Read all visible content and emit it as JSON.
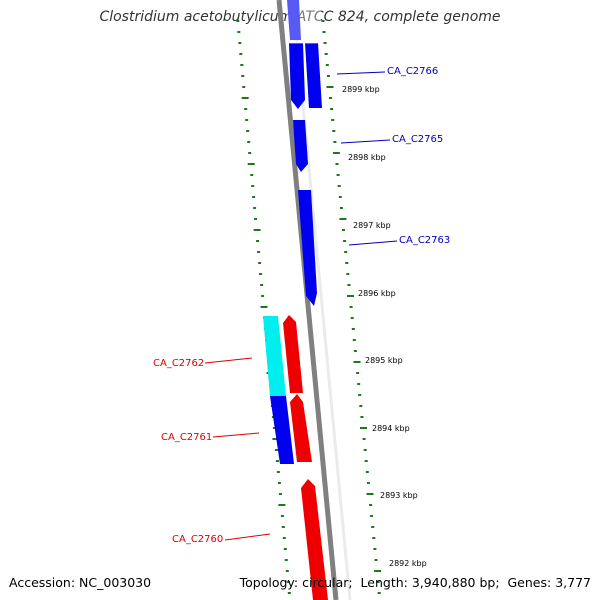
{
  "title": "Clostridium acetobutylicum ATCC 824, complete genome",
  "footer": {
    "accession_label": "Accession:",
    "accession": "NC_003030",
    "topology_label": "Topology:",
    "topology": "circular",
    "length_label": "Length:",
    "length": "3,940,880 bp",
    "genes_label": "Genes:",
    "genes": "3,777"
  },
  "colors": {
    "forward_gene": "#0000ee",
    "reverse_gene": "#ee0000",
    "cds_highlight": "#00eeee",
    "backbone": "#808080",
    "gc_skew_dots": "#1a7a1a",
    "label_forward": "#0000bb",
    "label_reverse": "#dd0000"
  },
  "ticks": [
    "2899 kbp",
    "2898 kbp",
    "2897 kbp",
    "2896 kbp",
    "2895 kbp",
    "2894 kbp",
    "2893 kbp",
    "2892 kbp"
  ],
  "genes": [
    {
      "name": "CA_C2766",
      "strand": "forward"
    },
    {
      "name": "CA_C2765",
      "strand": "forward"
    },
    {
      "name": "CA_C2763",
      "strand": "forward"
    },
    {
      "name": "CA_C2762",
      "strand": "reverse"
    },
    {
      "name": "CA_C2761",
      "strand": "reverse"
    },
    {
      "name": "CA_C2760",
      "strand": "reverse"
    }
  ]
}
